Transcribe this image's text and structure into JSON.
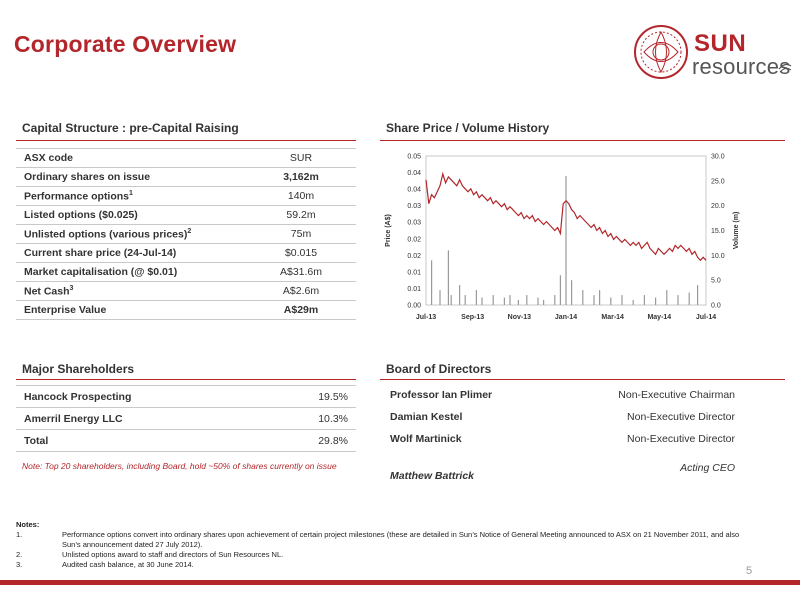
{
  "title": "Corporate Overview",
  "logo": {
    "line1": "SUN",
    "line2": "resources"
  },
  "capital": {
    "heading": "Capital Structure : pre-Capital Raising",
    "rows": [
      {
        "label": "ASX code",
        "sup": "",
        "value": "SUR",
        "bold": false
      },
      {
        "label": "Ordinary shares on issue",
        "sup": "",
        "value": "3,162m",
        "bold": true
      },
      {
        "label": "Performance options",
        "sup": "1",
        "value": "140m",
        "bold": false
      },
      {
        "label": "Listed options ($0.025)",
        "sup": "",
        "value": "59.2m",
        "bold": false
      },
      {
        "label": "Unlisted options (various prices)",
        "sup": "2",
        "value": "75m",
        "bold": false
      },
      {
        "label": "Current share price (24-Jul-14)",
        "sup": "",
        "value": "$0.015",
        "bold": false
      },
      {
        "label": "Market capitalisation (@ $0.01)",
        "sup": "",
        "value": "A$31.6m",
        "bold": false
      },
      {
        "label": "Net Cash",
        "sup": "3",
        "value": "A$2.6m",
        "bold": false
      },
      {
        "label": "Enterprise Value",
        "sup": "",
        "value": "A$29m",
        "bold": true
      }
    ]
  },
  "shareholders": {
    "heading": "Major Shareholders",
    "rows": [
      {
        "name": "Hancock Prospecting",
        "pct": "19.5%"
      },
      {
        "name": "Amerril Energy LLC",
        "pct": "10.3%"
      },
      {
        "name": "Total",
        "pct": "29.8%"
      }
    ],
    "note": "Note: Top 20 shareholders, including Board, hold ~50% of shares currently on issue"
  },
  "board": {
    "heading": "Board of Directors",
    "members": [
      {
        "name": "Professor Ian Plimer",
        "role": "Non-Executive Chairman"
      },
      {
        "name": "Damian Kestel",
        "role": "Non-Executive Director"
      },
      {
        "name": "Wolf Martinick",
        "role": "Non-Executive Director"
      },
      {
        "name": "Matthew Battrick",
        "role": "Acting CEO"
      }
    ]
  },
  "chart_heading": "Share Price / Volume History",
  "chart_data": {
    "type": "line",
    "title": "",
    "ylabel": "Price (A$)",
    "y2label": "Volume (m)",
    "ylim": [
      0,
      0.05
    ],
    "y2lim": [
      0,
      30
    ],
    "yticks": [
      "0.00",
      "0.01",
      "0.01",
      "0.02",
      "0.02",
      "0.03",
      "0.03",
      "0.04",
      "0.04",
      "0.05"
    ],
    "y2ticks": [
      "0.0",
      "5.0",
      "10.0",
      "15.0",
      "20.0",
      "25.0",
      "30.0"
    ],
    "xticks": [
      "Jul-13",
      "Sep-13",
      "Nov-13",
      "Jan-14",
      "Mar-14",
      "May-14",
      "Jul-14"
    ],
    "price_series": {
      "name": "Price (A$)",
      "color": "#b3262b",
      "x": [
        0,
        1,
        2,
        3,
        4,
        5,
        6,
        7,
        8,
        9,
        10,
        11,
        12,
        13,
        14,
        15,
        16,
        17,
        18,
        19,
        20,
        21,
        22,
        23,
        24,
        25,
        26,
        27,
        28,
        29,
        30,
        31,
        32,
        33,
        34,
        35,
        36,
        37,
        38,
        39,
        40,
        41,
        42,
        43,
        44,
        45,
        46,
        47,
        48,
        49,
        50,
        51,
        52,
        53,
        54,
        55,
        56,
        57,
        58,
        59,
        60,
        61,
        62,
        63,
        64,
        65,
        66,
        67,
        68,
        69,
        70,
        71,
        72,
        73,
        74,
        75,
        76,
        77,
        78,
        79,
        80,
        81,
        82,
        83,
        84,
        85,
        86,
        87,
        88,
        89,
        90,
        91,
        92,
        93,
        94,
        95,
        96,
        97,
        98,
        99,
        100
      ],
      "values": [
        0.042,
        0.034,
        0.037,
        0.036,
        0.038,
        0.04,
        0.044,
        0.041,
        0.043,
        0.042,
        0.041,
        0.04,
        0.042,
        0.04,
        0.039,
        0.038,
        0.039,
        0.037,
        0.038,
        0.036,
        0.037,
        0.036,
        0.035,
        0.036,
        0.034,
        0.035,
        0.034,
        0.033,
        0.034,
        0.032,
        0.033,
        0.032,
        0.031,
        0.03,
        0.031,
        0.029,
        0.03,
        0.029,
        0.03,
        0.028,
        0.029,
        0.028,
        0.027,
        0.028,
        0.027,
        0.026,
        0.025,
        0.026,
        0.024,
        0.034,
        0.035,
        0.034,
        0.032,
        0.031,
        0.029,
        0.03,
        0.029,
        0.028,
        0.027,
        0.026,
        0.027,
        0.025,
        0.026,
        0.024,
        0.025,
        0.023,
        0.024,
        0.022,
        0.023,
        0.022,
        0.021,
        0.022,
        0.021,
        0.02,
        0.021,
        0.02,
        0.021,
        0.019,
        0.02,
        0.021,
        0.019,
        0.018,
        0.017,
        0.019,
        0.018,
        0.017,
        0.018,
        0.019,
        0.018,
        0.02,
        0.019,
        0.02,
        0.019,
        0.018,
        0.019,
        0.017,
        0.018,
        0.016,
        0.015,
        0.016,
        0.015
      ]
    },
    "volume_series": {
      "name": "Volume (m)",
      "color": "#999999",
      "x": [
        2,
        5,
        8,
        9,
        12,
        14,
        18,
        20,
        24,
        28,
        30,
        33,
        36,
        40,
        42,
        46,
        48,
        50,
        52,
        56,
        60,
        62,
        66,
        70,
        74,
        78,
        82,
        86,
        90,
        94,
        97
      ],
      "values": [
        9,
        3,
        11,
        2,
        4,
        2,
        3,
        1.5,
        2,
        1.5,
        2,
        1,
        2,
        1.5,
        1,
        2,
        6,
        26,
        5,
        3,
        2,
        3,
        1.5,
        2,
        1,
        2,
        1.5,
        3,
        2,
        2.5,
        4
      ]
    }
  },
  "notes": {
    "heading": "Notes:",
    "items": [
      {
        "num": "1.",
        "text": "Performance options convert into ordinary shares upon achievement of certain project milestones (these are detailed in Sun’s Notice of General Meeting announced to ASX on 21 November 2011, and also Sun’s announcement dated 27 July 2012)."
      },
      {
        "num": "2.",
        "text": "Unlisted options award to staff and directors of Sun Resources NL."
      },
      {
        "num": "3.",
        "text": "Audited cash balance, at 30 June 2014."
      }
    ]
  },
  "page_number": "5"
}
